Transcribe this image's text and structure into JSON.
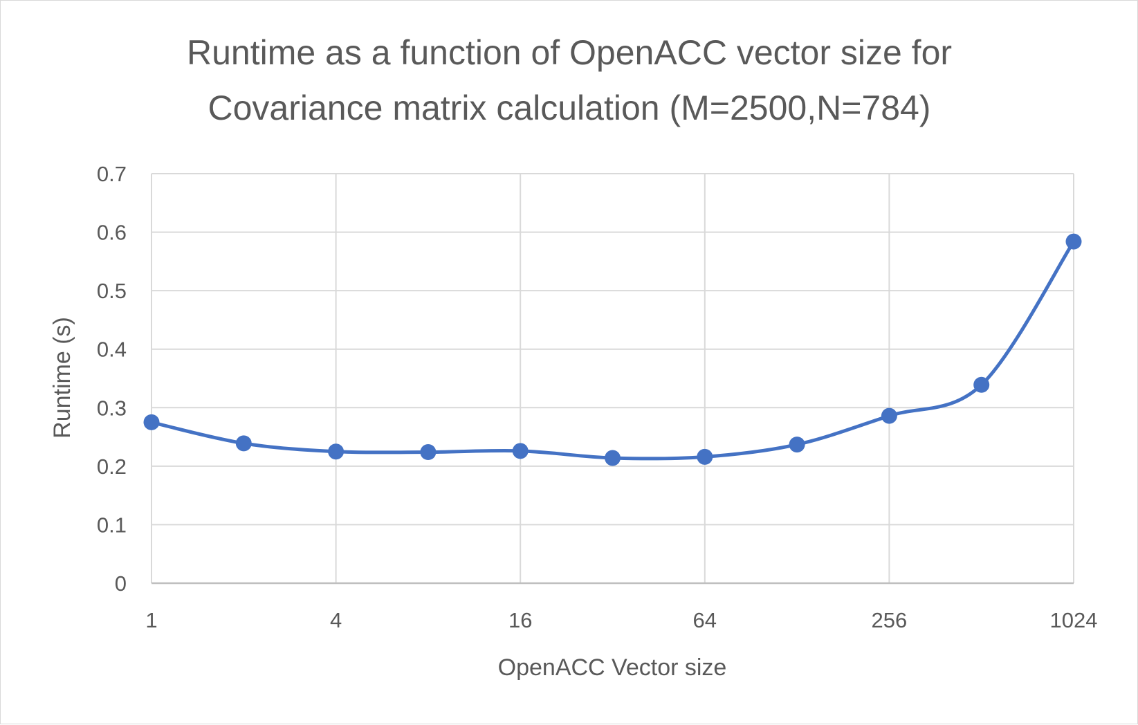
{
  "chart_data": {
    "type": "line",
    "title_lines": [
      "Runtime as a function of OpenACC vector size for",
      "Covariance matrix calculation (M=2500,N=784)"
    ],
    "xlabel": "OpenACC Vector size",
    "ylabel": "Runtime (s)",
    "x_scale": "log2",
    "x_ticks": [
      1,
      4,
      16,
      64,
      256,
      1024
    ],
    "x_tick_labels": [
      "1",
      "4",
      "16",
      "64",
      "256",
      "1024"
    ],
    "xlim": [
      1,
      1024
    ],
    "y_ticks": [
      0,
      0.1,
      0.2,
      0.3,
      0.4,
      0.5,
      0.6,
      0.7
    ],
    "y_tick_labels": [
      "0",
      "0.1",
      "0.2",
      "0.3",
      "0.4",
      "0.5",
      "0.6",
      "0.7"
    ],
    "ylim": [
      0,
      0.7
    ],
    "grid": true,
    "smooth": true,
    "series": [
      {
        "name": "Runtime",
        "color": "#4472c4",
        "x": [
          1,
          2,
          4,
          8,
          16,
          32,
          64,
          128,
          256,
          512,
          1024
        ],
        "y": [
          0.275,
          0.239,
          0.225,
          0.224,
          0.226,
          0.214,
          0.216,
          0.237,
          0.286,
          0.339,
          0.584
        ]
      }
    ]
  },
  "colors": {
    "text": "#595959",
    "grid": "#d9d9d9",
    "axis": "#bfbfbf",
    "series": "#4472c4"
  }
}
